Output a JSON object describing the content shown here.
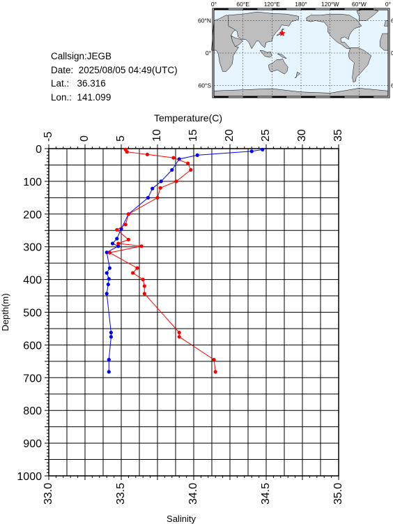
{
  "info": {
    "callsign": "Callsign:JEGB",
    "date": "Date:  2025/08/05 04:49(UTC)",
    "lat": "Lat.:   36.316",
    "lon": "Lon.:  141.099"
  },
  "map": {
    "lon_ticks": [
      "0°",
      "60°E",
      "120°E",
      "180°",
      "120°W",
      "60°W",
      "0°"
    ],
    "lat_ticks": [
      "60°N",
      "0°",
      "60°S"
    ],
    "ocean_color": "#e6f5ff",
    "land_color": "#bebebe",
    "marker": {
      "lat": 36.316,
      "lon": 141.099,
      "color": "#ff0000"
    }
  },
  "chart_data": {
    "type": "line",
    "ylabel": "Depth(m)",
    "ylim": [
      1000,
      0
    ],
    "yticks": [
      "0",
      "100",
      "200",
      "300",
      "400",
      "500",
      "600",
      "700",
      "800",
      "900",
      "1000"
    ],
    "top_axis": {
      "label": "Temperature(C)",
      "range": [
        -5,
        35
      ],
      "ticks": [
        "-5",
        "0",
        "5",
        "10",
        "15",
        "20",
        "25",
        "30",
        "35"
      ]
    },
    "bottom_axis": {
      "label": "Salinity",
      "range": [
        33.0,
        35.0
      ],
      "ticks": [
        "33.0",
        "33.5",
        "34.0",
        "34.5",
        "35.0"
      ]
    },
    "grid": true,
    "series": [
      {
        "axis": "top",
        "color": "#0000ff",
        "points": [
          [
            24.5,
            3
          ],
          [
            23.0,
            8
          ],
          [
            15.5,
            20
          ],
          [
            13.0,
            32
          ],
          [
            12.0,
            65
          ],
          [
            10.5,
            100
          ],
          [
            9.3,
            122
          ],
          [
            8.7,
            150
          ],
          [
            6.0,
            200
          ],
          [
            5.0,
            245
          ],
          [
            4.4,
            275
          ],
          [
            3.8,
            290
          ],
          [
            4.6,
            298
          ],
          [
            3.0,
            317
          ],
          [
            3.4,
            365
          ],
          [
            3.0,
            380
          ],
          [
            3.3,
            398
          ],
          [
            3.2,
            415
          ],
          [
            3.0,
            443
          ],
          [
            3.6,
            562
          ],
          [
            3.6,
            575
          ],
          [
            3.3,
            645
          ],
          [
            3.3,
            682
          ]
        ]
      },
      {
        "axis": "bottom",
        "color": "#ff0000",
        "points": [
          [
            33.53,
            3
          ],
          [
            33.54,
            10
          ],
          [
            33.68,
            18
          ],
          [
            33.86,
            28
          ],
          [
            33.96,
            45
          ],
          [
            33.98,
            65
          ],
          [
            33.88,
            100
          ],
          [
            33.77,
            120
          ],
          [
            33.75,
            150
          ],
          [
            33.55,
            200
          ],
          [
            33.53,
            232
          ],
          [
            33.47,
            248
          ],
          [
            33.55,
            278
          ],
          [
            33.48,
            290
          ],
          [
            33.64,
            298
          ],
          [
            33.42,
            318
          ],
          [
            33.61,
            365
          ],
          [
            33.58,
            380
          ],
          [
            33.65,
            400
          ],
          [
            33.66,
            420
          ],
          [
            33.66,
            443
          ],
          [
            33.9,
            562
          ],
          [
            33.9,
            575
          ],
          [
            34.14,
            645
          ],
          [
            34.15,
            682
          ]
        ]
      }
    ]
  }
}
